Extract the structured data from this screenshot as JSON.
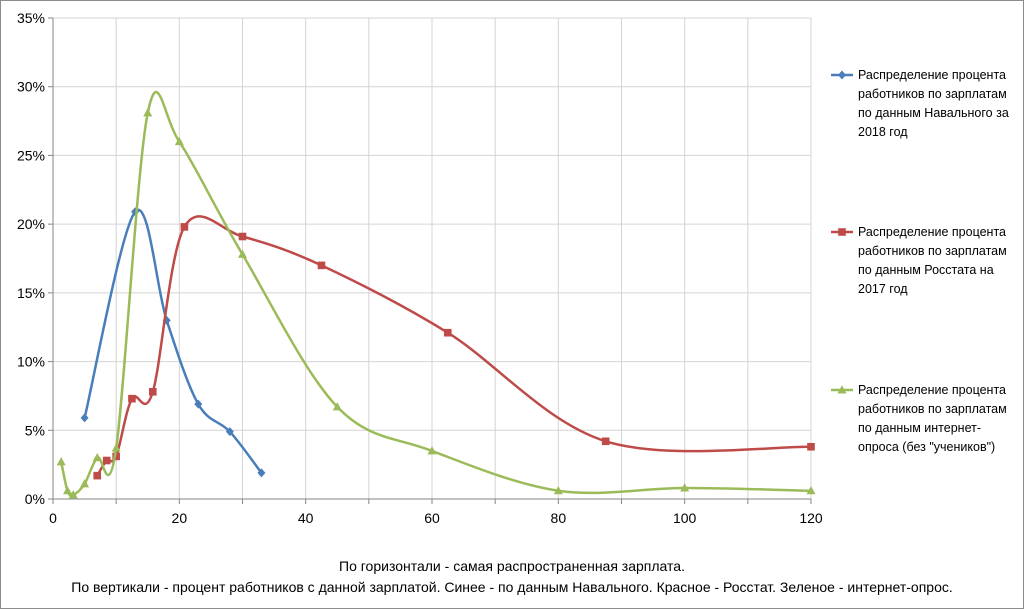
{
  "chart_data": {
    "type": "scatter",
    "xlim": [
      0,
      120
    ],
    "ylim": [
      0,
      35
    ],
    "x_ticks": [
      "0",
      "20",
      "40",
      "60",
      "80",
      "100",
      "120"
    ],
    "y_ticks": [
      "0%",
      "5%",
      "10%",
      "15%",
      "20%",
      "25%",
      "30%",
      "35%"
    ],
    "grid": true,
    "smooth_lines": true,
    "legend_position": "right",
    "series": [
      {
        "name": "Распределение процента работников по зарплатам по данным Навального за 2018 год",
        "legend_lines": [
          "Распределение процента",
          "работников по зарплатам",
          "по данным Навального за",
          "2018 год"
        ],
        "color": "#4a7ebb",
        "marker": "diamond",
        "x": [
          5,
          13,
          18,
          23,
          28,
          33
        ],
        "y": [
          5.9,
          20.9,
          13,
          6.9,
          4.9,
          1.9
        ]
      },
      {
        "name": "Распределение процента работников по зарплатам по данным Росстата на 2017 год",
        "legend_lines": [
          "Распределение процента",
          "работников по зарплатам",
          "по данным Росстата на",
          "2017 год"
        ],
        "color": "#be4b48",
        "marker": "square",
        "x": [
          7,
          8.5,
          10,
          12.5,
          15.8,
          20.8,
          30,
          42.5,
          62.5,
          87.5,
          120
        ],
        "y": [
          1.7,
          2.8,
          3.1,
          7.3,
          7.8,
          19.8,
          19.1,
          17,
          12.1,
          4.2,
          3.8
        ]
      },
      {
        "name": "Распределение процента работников по зарплатам по данным интернет-опроса (без \"учеников\")",
        "legend_lines": [
          "Распределение процента",
          "работников по зарплатам",
          "по данным интернет-",
          "опроса (без \"учеников\")"
        ],
        "color": "#9bbb59",
        "marker": "triangle",
        "x": [
          1.3,
          2.3,
          3.2,
          5,
          7,
          10,
          15,
          20,
          30,
          45,
          60,
          80,
          100,
          120
        ],
        "y": [
          2.7,
          0.6,
          0.3,
          1.1,
          3,
          3.7,
          28.1,
          26,
          17.8,
          6.7,
          3.5,
          0.6,
          0.8,
          0.6
        ]
      }
    ]
  },
  "caption": {
    "line1": "По горизонтали - самая распространенная зарплата.",
    "line2": "По вертикали - процент работников с данной зарплатой.  Синее - по данным Навального. Красное - Росстат. Зеленое - интернет-опрос."
  }
}
